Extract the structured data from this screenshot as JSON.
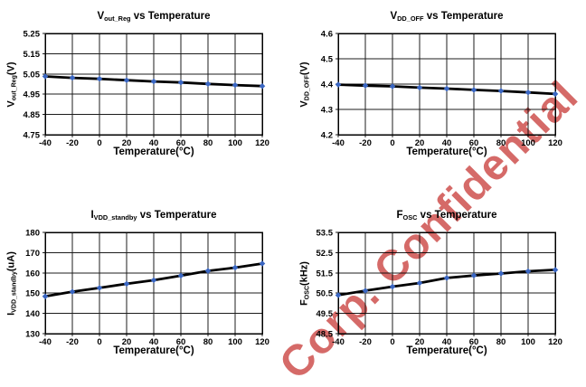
{
  "watermark": {
    "text": "Corp. Confidential",
    "color": "#d56a68"
  },
  "chart_data": [
    {
      "name": "vout-reg",
      "type": "line",
      "title": "Vout_Reg vs Temperature",
      "title_parts": [
        [
          "V",
          false
        ],
        [
          "out_Reg",
          true
        ],
        [
          " vs Temperature",
          false
        ]
      ],
      "ylabel": "Vout_Reg(V)",
      "ylabel_parts": [
        [
          "V",
          false
        ],
        [
          "out_Reg",
          true
        ],
        [
          "(V)",
          false
        ]
      ],
      "xlabel": "Temperature(°C)",
      "x": [
        -40,
        -20,
        0,
        20,
        40,
        60,
        80,
        100,
        120
      ],
      "values": [
        5.038,
        5.031,
        5.026,
        5.019,
        5.013,
        5.008,
        5.001,
        4.995,
        4.99
      ],
      "ylim": [
        4.75,
        5.25
      ],
      "yticks": [
        4.75,
        4.85,
        4.95,
        5.05,
        5.15,
        5.25
      ],
      "ytick_labels": [
        "4.75",
        "4.85",
        "4.95",
        "5.05",
        "5.15",
        "5.25"
      ],
      "grid": true,
      "line_color": "#000000",
      "marker": "diamond",
      "marker_color": "#3a66c2"
    },
    {
      "name": "vdd-off",
      "type": "line",
      "title": "VDD_OFF vs Temperature",
      "title_parts": [
        [
          "V",
          false
        ],
        [
          "DD_OFF",
          true
        ],
        [
          " vs Temperature",
          false
        ]
      ],
      "ylabel": "VDD_OFF(V)",
      "ylabel_parts": [
        [
          "V",
          false
        ],
        [
          "DD_OFF",
          true
        ],
        [
          "(V)",
          false
        ]
      ],
      "xlabel": "Temperature(°C)",
      "x": [
        -40,
        -20,
        0,
        20,
        40,
        60,
        80,
        100,
        120
      ],
      "values": [
        4.398,
        4.394,
        4.391,
        4.386,
        4.382,
        4.377,
        4.373,
        4.367,
        4.361
      ],
      "ylim": [
        4.2,
        4.6
      ],
      "yticks": [
        4.2,
        4.3,
        4.4,
        4.5,
        4.6
      ],
      "ytick_labels": [
        "4.2",
        "4.3",
        "4.4",
        "4.5",
        "4.6"
      ],
      "grid": true,
      "line_color": "#000000",
      "marker": "diamond",
      "marker_color": "#3a66c2"
    },
    {
      "name": "ivdd-standby",
      "type": "line",
      "title": "IVDD_standby vs Temperature",
      "title_parts": [
        [
          "I",
          false
        ],
        [
          "VDD_standby",
          true
        ],
        [
          " vs Temperature",
          false
        ]
      ],
      "ylabel": "IVDD_standby(uA)",
      "ylabel_parts": [
        [
          "I",
          false
        ],
        [
          "VDD_standby",
          true
        ],
        [
          "(uA)",
          false
        ]
      ],
      "xlabel": "Temperature(°C)",
      "x": [
        -40,
        -20,
        0,
        20,
        40,
        60,
        80,
        100,
        120
      ],
      "values": [
        148.4,
        150.7,
        152.6,
        154.6,
        156.4,
        158.6,
        161.0,
        162.6,
        164.6
      ],
      "ylim": [
        130,
        180
      ],
      "yticks": [
        130,
        140,
        150,
        160,
        170,
        180
      ],
      "ytick_labels": [
        "130",
        "140",
        "150",
        "160",
        "170",
        "180"
      ],
      "grid": true,
      "line_color": "#000000",
      "marker": "diamond",
      "marker_color": "#3a66c2"
    },
    {
      "name": "fosc",
      "type": "line",
      "title": "FOSC vs Temperature",
      "title_parts": [
        [
          "F",
          false
        ],
        [
          "OSC",
          true
        ],
        [
          " vs Temperature",
          false
        ]
      ],
      "ylabel": "FOSC(kHz)",
      "ylabel_parts": [
        [
          "F",
          false
        ],
        [
          "OSC",
          true
        ],
        [
          "(kHz)",
          false
        ]
      ],
      "xlabel": "Temperature(°C)",
      "x": [
        -40,
        -20,
        0,
        20,
        40,
        60,
        80,
        100,
        120
      ],
      "values": [
        50.4,
        50.62,
        50.82,
        51.0,
        51.25,
        51.37,
        51.47,
        51.58,
        51.65
      ],
      "ylim": [
        48.5,
        53.5
      ],
      "yticks": [
        48.5,
        49.5,
        50.5,
        51.5,
        52.5,
        53.5
      ],
      "ytick_labels": [
        "48.5",
        "49.5",
        "50.5",
        "51.5",
        "52.5",
        "53.5"
      ],
      "grid": true,
      "line_color": "#000000",
      "marker": "diamond",
      "marker_color": "#3a66c2"
    }
  ]
}
